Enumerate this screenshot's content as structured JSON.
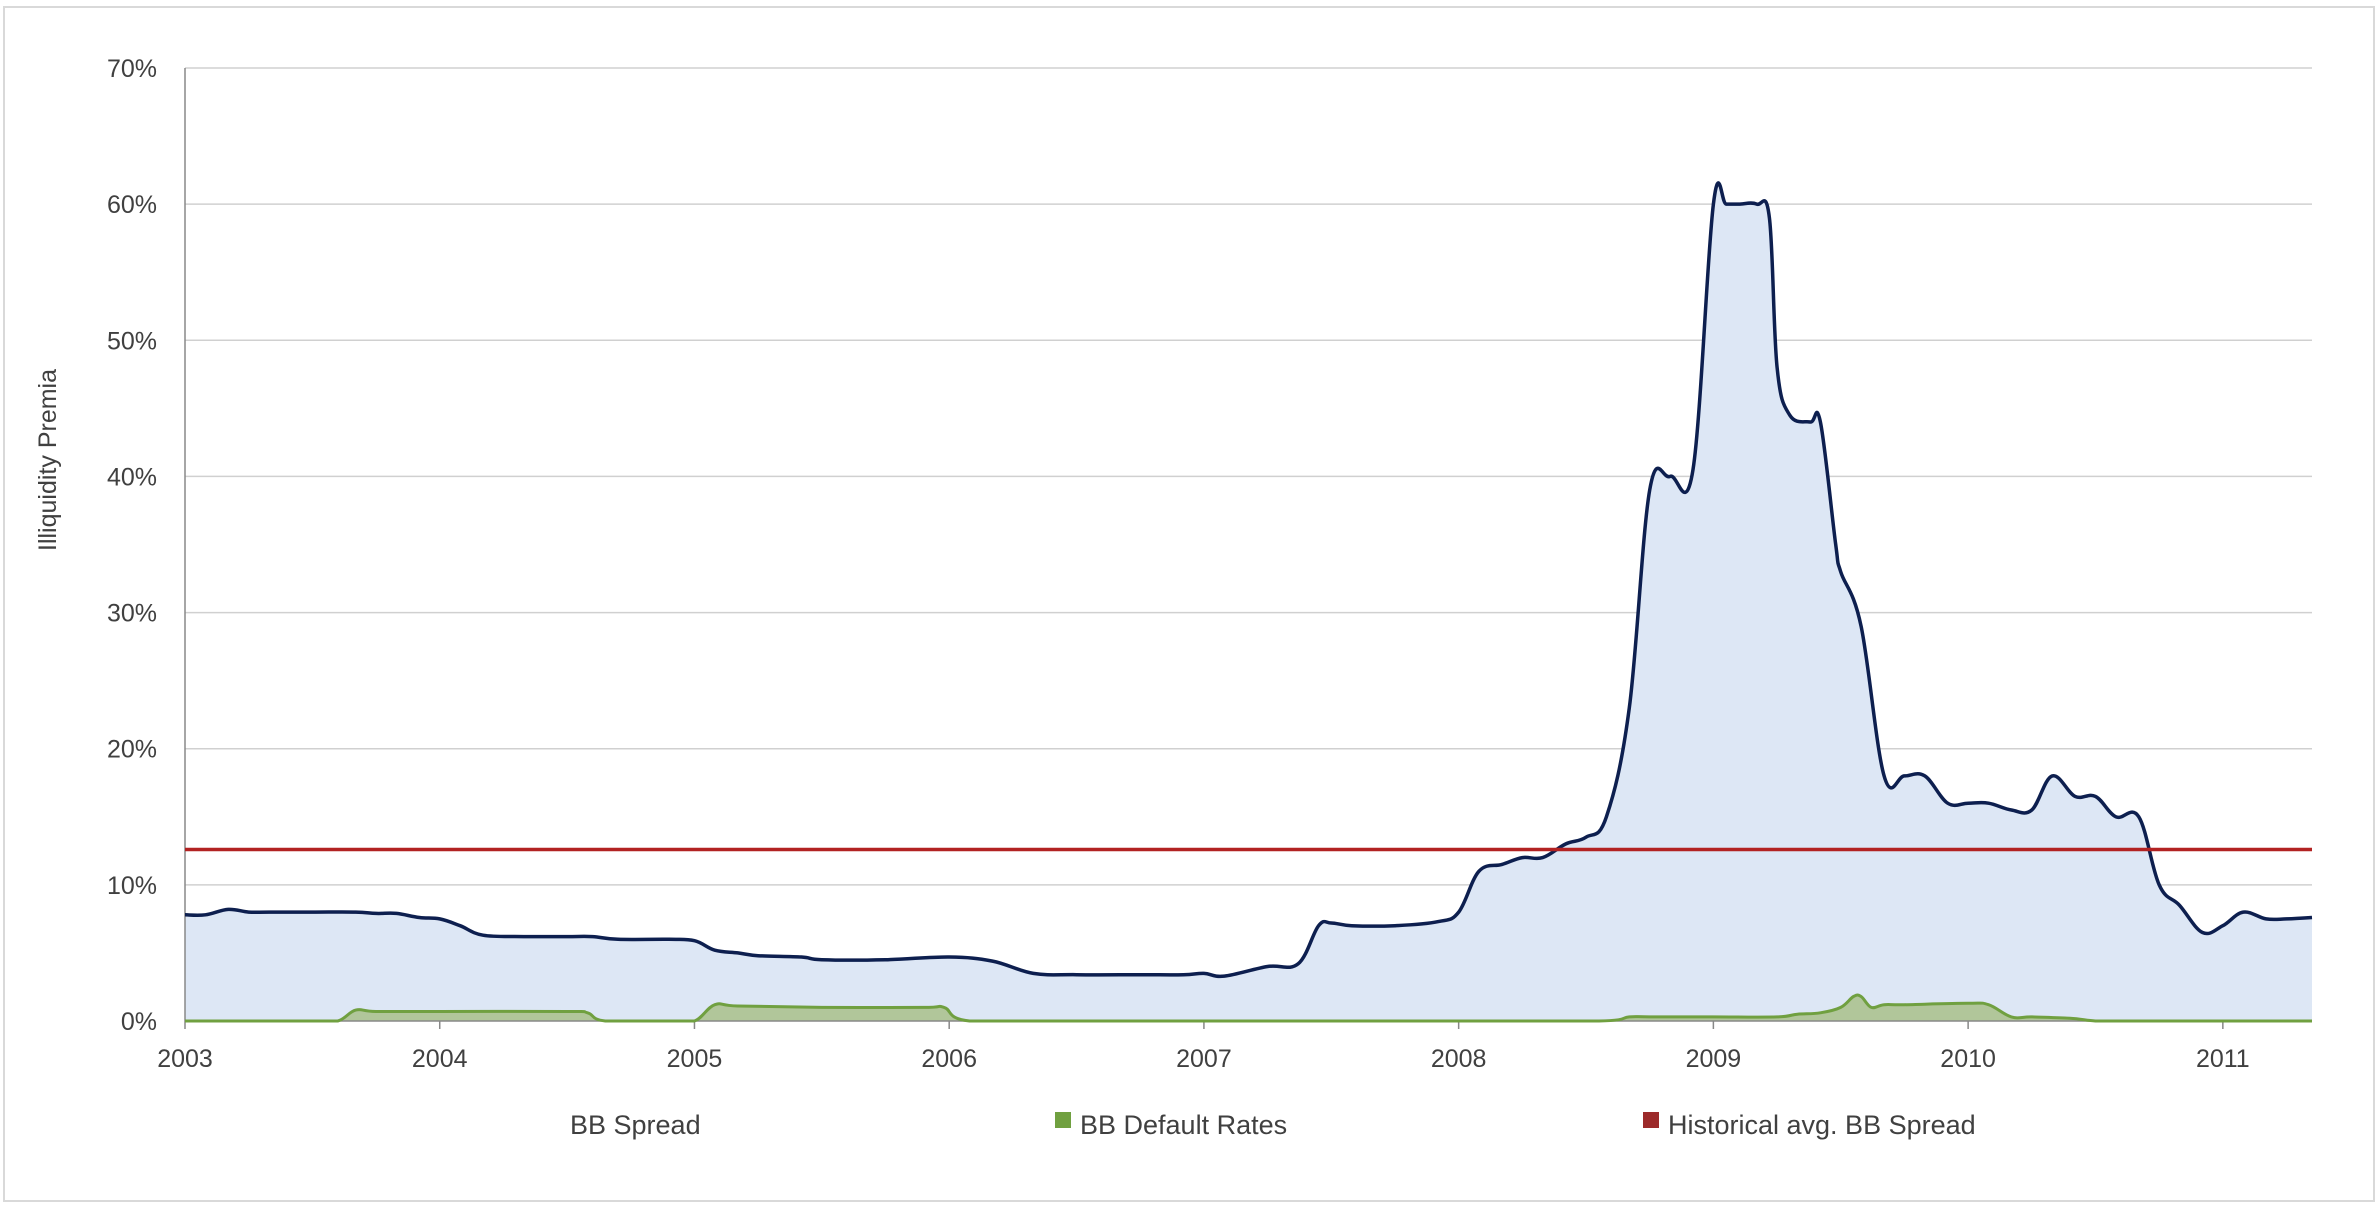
{
  "chart_data": {
    "type": "area",
    "ylabel": "Illiquidity Premia",
    "xlabel": "",
    "ylim": [
      0,
      70
    ],
    "xlim": [
      2003.0,
      2011.35
    ],
    "y_tick_values": [
      0,
      10,
      20,
      30,
      40,
      50,
      60,
      70
    ],
    "y_tick_labels": [
      "0%",
      "10%",
      "20%",
      "30%",
      "40%",
      "50%",
      "60%",
      "70%"
    ],
    "x_tick_values": [
      2003,
      2004,
      2005,
      2006,
      2007,
      2008,
      2009,
      2010,
      2011
    ],
    "x_tick_labels": [
      "2003",
      "2004",
      "2005",
      "2006",
      "2007",
      "2008",
      "2009",
      "2010",
      "2011"
    ],
    "grid": "horizontal",
    "legend_position": "bottom",
    "series": [
      {
        "name": "BB Spread",
        "kind": "area-line",
        "color": "#0d1f4f",
        "fill": "#dde7f5",
        "x": [
          2003.0,
          2003.08,
          2003.17,
          2003.25,
          2003.33,
          2003.5,
          2003.67,
          2003.75,
          2003.83,
          2003.92,
          2004.0,
          2004.08,
          2004.17,
          2004.33,
          2004.5,
          2004.6,
          2004.7,
          2004.9,
          2005.0,
          2005.08,
          2005.17,
          2005.25,
          2005.42,
          2005.5,
          2005.75,
          2006.0,
          2006.17,
          2006.33,
          2006.5,
          2006.75,
          2006.92,
          2007.0,
          2007.08,
          2007.25,
          2007.37,
          2007.45,
          2007.5,
          2007.58,
          2007.75,
          2007.92,
          2008.0,
          2008.08,
          2008.17,
          2008.25,
          2008.33,
          2008.42,
          2008.5,
          2008.58,
          2008.67,
          2008.75,
          2008.83,
          2008.92,
          2009.0,
          2009.05,
          2009.1,
          2009.17,
          2009.22,
          2009.25,
          2009.3,
          2009.38,
          2009.42,
          2009.48,
          2009.5,
          2009.58,
          2009.67,
          2009.75,
          2009.83,
          2009.92,
          2010.0,
          2010.08,
          2010.17,
          2010.25,
          2010.33,
          2010.42,
          2010.5,
          2010.58,
          2010.67,
          2010.75,
          2010.83,
          2010.92,
          2011.0,
          2011.08,
          2011.17,
          2011.25,
          2011.35
        ],
        "values": [
          7.8,
          7.8,
          8.2,
          8.0,
          8.0,
          8.0,
          8.0,
          7.9,
          7.9,
          7.6,
          7.5,
          7.0,
          6.3,
          6.2,
          6.2,
          6.2,
          6.0,
          6.0,
          5.9,
          5.2,
          5.0,
          4.8,
          4.7,
          4.5,
          4.5,
          4.7,
          4.4,
          3.5,
          3.4,
          3.4,
          3.4,
          3.5,
          3.3,
          4.0,
          4.2,
          7.0,
          7.2,
          7.0,
          7.0,
          7.3,
          8.0,
          11.0,
          11.5,
          12.0,
          12.0,
          13.0,
          13.5,
          15.0,
          23.0,
          39.0,
          40.0,
          40.5,
          60.0,
          60.0,
          60.0,
          60.0,
          59.0,
          48.0,
          44.5,
          44.0,
          44.0,
          35.0,
          33.0,
          29.0,
          18.0,
          18.0,
          18.0,
          16.0,
          16.0,
          16.0,
          15.5,
          15.5,
          18.0,
          16.5,
          16.5,
          15.0,
          15.0,
          10.0,
          8.5,
          6.5,
          7.0,
          8.0,
          7.5,
          7.5,
          7.6
        ]
      },
      {
        "name": "BB Default Rates",
        "kind": "area",
        "color": "#70a040",
        "fill": "#a9c08a",
        "x": [
          2003.0,
          2003.5,
          2003.6,
          2003.67,
          2003.75,
          2004.0,
          2004.5,
          2004.58,
          2004.65,
          2004.9,
          2005.0,
          2005.08,
          2005.17,
          2005.5,
          2005.9,
          2005.98,
          2006.08,
          2006.5,
          2007.0,
          2008.0,
          2008.55,
          2008.67,
          2008.75,
          2009.0,
          2009.25,
          2009.33,
          2009.42,
          2009.5,
          2009.55,
          2009.58,
          2009.62,
          2009.67,
          2009.75,
          2010.0,
          2010.08,
          2010.17,
          2010.25,
          2010.4,
          2010.5,
          2010.6,
          2011.0,
          2011.35
        ],
        "values": [
          0,
          0,
          0,
          0.8,
          0.7,
          0.7,
          0.7,
          0.6,
          0,
          0,
          0,
          1.2,
          1.1,
          1.0,
          1.0,
          1.0,
          0,
          0,
          0,
          0,
          0,
          0.3,
          0.3,
          0.3,
          0.3,
          0.5,
          0.6,
          1.0,
          1.8,
          1.8,
          1.0,
          1.2,
          1.2,
          1.3,
          1.2,
          0.3,
          0.3,
          0.2,
          0,
          0,
          0,
          0
        ]
      },
      {
        "name": "Historical avg. BB Spread",
        "kind": "hline",
        "color": "#b22222",
        "values": [
          12.6
        ]
      }
    ],
    "legend": [
      {
        "label": "BB Spread",
        "marker": "none"
      },
      {
        "label": "BB Default Rates",
        "marker": "square",
        "color": "#70a040"
      },
      {
        "label": "Historical avg. BB Spread",
        "marker": "square",
        "color": "#9c2a2a"
      }
    ]
  }
}
